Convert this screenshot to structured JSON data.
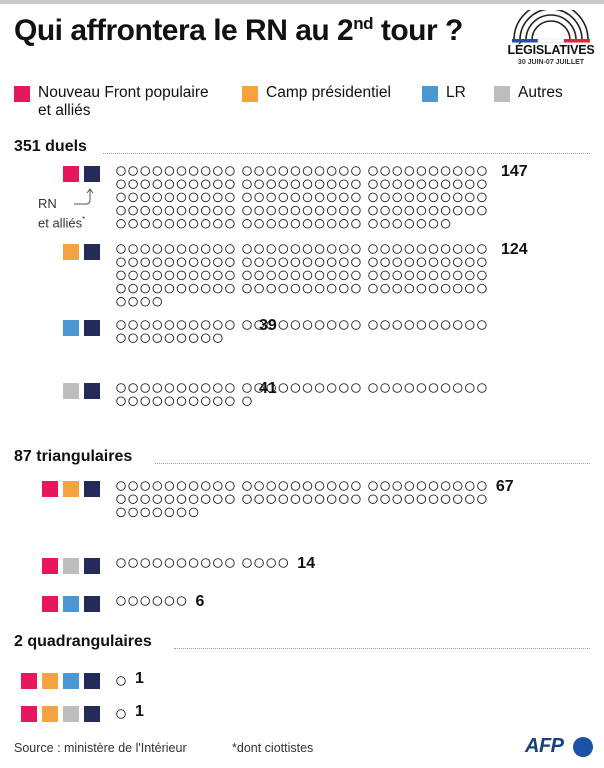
{
  "title": "Qui affrontera le RN au 2",
  "title_sup": "nd",
  "title_end": " tour ?",
  "logo": {
    "name": "LÉGISLATIVES",
    "dates": "30 JUIN-07 JUILLET"
  },
  "legend": [
    {
      "label_line1": "Nouveau Front populaire",
      "label_line2": "et alliés",
      "color": "#e6175c"
    },
    {
      "label_line1": "Camp présidentiel",
      "label_line2": "",
      "color": "#f4a340"
    },
    {
      "label_line1": "LR",
      "label_line2": "",
      "color": "#4c98d5"
    },
    {
      "label_line1": "Autres",
      "label_line2": "",
      "color": "#bdbdbd"
    }
  ],
  "colors": {
    "RN": "#242b58",
    "NFP": "#e6175c",
    "Ens": "#f4a340",
    "LR": "#4c98d5",
    "Autres": "#bdbdbd"
  },
  "note": {
    "line1": "RN",
    "line2": "et alliés",
    "star": "*"
  },
  "source": "Source : ministère de l'Intérieur",
  "footnote": "*dont ciottistes",
  "afp": "AFP",
  "chart_data": {
    "type": "dot",
    "groups": [
      {
        "title": "351 duels",
        "rows": [
          {
            "parties": [
              "NFP",
              "RN"
            ],
            "value": 147
          },
          {
            "parties": [
              "Ens",
              "RN"
            ],
            "value": 124
          },
          {
            "parties": [
              "LR",
              "RN"
            ],
            "value": 39
          },
          {
            "parties": [
              "Autres",
              "RN"
            ],
            "value": 41
          }
        ]
      },
      {
        "title": "87 triangulaires",
        "rows": [
          {
            "parties": [
              "NFP",
              "Ens",
              "RN"
            ],
            "value": 67
          },
          {
            "parties": [
              "NFP",
              "Autres",
              "RN"
            ],
            "value": 14
          },
          {
            "parties": [
              "NFP",
              "LR",
              "RN"
            ],
            "value": 6
          }
        ]
      },
      {
        "title": "2 quadrangulaires",
        "rows": [
          {
            "parties": [
              "NFP",
              "Ens",
              "LR",
              "RN"
            ],
            "value": 1
          },
          {
            "parties": [
              "NFP",
              "Ens",
              "Autres",
              "RN"
            ],
            "value": 1
          }
        ]
      }
    ]
  }
}
